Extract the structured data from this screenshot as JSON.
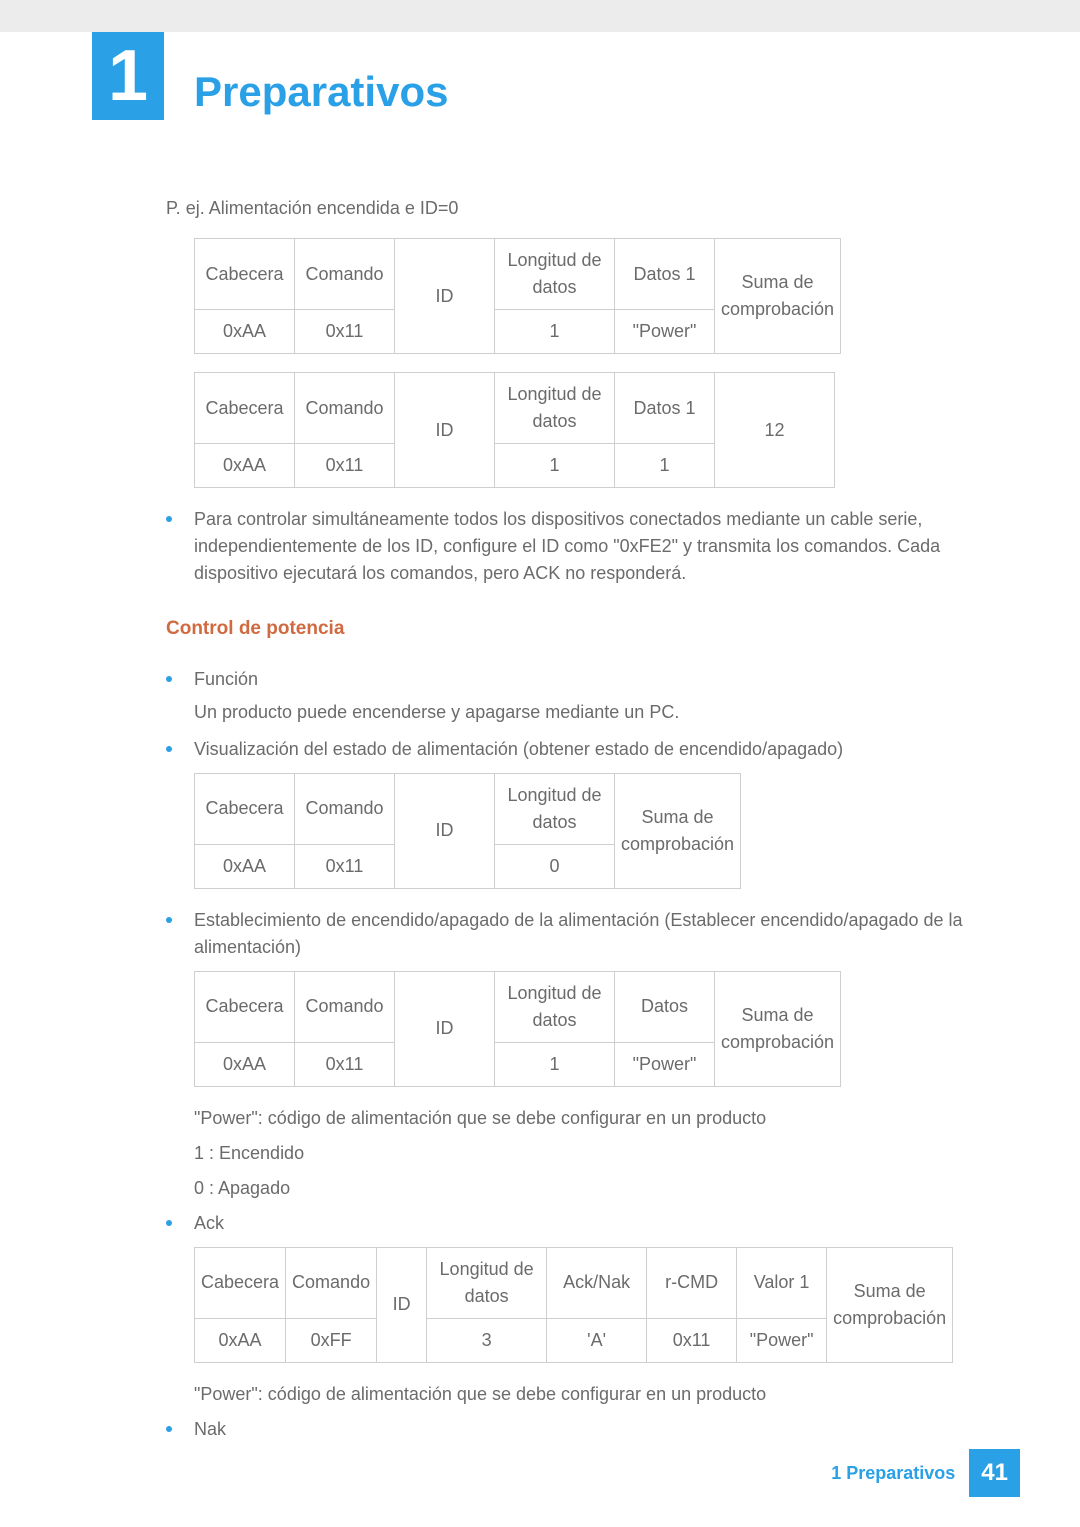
{
  "chapter": {
    "number": "1",
    "title": "Preparativos"
  },
  "intro_line": "P. ej. Alimentación encendida e ID=0",
  "table1": {
    "headers": [
      "Cabecera",
      "Comando",
      "ID",
      "Longitud de datos",
      "Datos 1"
    ],
    "merged_header": "Suma de comprobación",
    "row": [
      "0xAA",
      "0x11",
      "",
      "1",
      "\"Power\""
    ]
  },
  "table2": {
    "headers": [
      "Cabecera",
      "Comando",
      "ID",
      "Longitud de datos",
      "Datos 1"
    ],
    "merged_header": "12",
    "row": [
      "0xAA",
      "0x11",
      "",
      "1",
      "1"
    ]
  },
  "bullet_serial": "Para controlar simultáneamente todos los dispositivos conectados mediante un cable serie, independientemente de los ID, configure el ID como \"0xFE2\" y transmita los comandos. Cada dispositivo ejecutará los comandos, pero ACK no responderá.",
  "section_power": "Control de potencia",
  "bullet_funcion": {
    "title": "Función",
    "sub": "Un producto puede encenderse y apagarse mediante un PC."
  },
  "bullet_viz": "Visualización del estado de alimentación (obtener estado de encendido/apagado)",
  "table3": {
    "headers": [
      "Cabecera",
      "Comando",
      "ID",
      "Longitud de datos"
    ],
    "merged_header": "Suma de comprobación",
    "row": [
      "0xAA",
      "0x11",
      "",
      "0"
    ]
  },
  "bullet_estab": "Establecimiento de encendido/apagado de la alimentación (Establecer encendido/apagado de la alimentación)",
  "table4": {
    "headers": [
      "Cabecera",
      "Comando",
      "ID",
      "Longitud de datos",
      "Datos"
    ],
    "merged_header": "Suma de comprobación",
    "row": [
      "0xAA",
      "0x11",
      "",
      "1",
      "\"Power\""
    ]
  },
  "after_t4_1": "\"Power\": código de alimentación que se debe configurar en un producto",
  "after_t4_2": "1 : Encendido",
  "after_t4_3": "0 : Apagado",
  "bullet_ack": "Ack",
  "table5": {
    "headers": [
      "Cabecera",
      "Comando",
      "ID",
      "Longitud de datos",
      "Ack/Nak",
      "r-CMD",
      "Valor 1"
    ],
    "merged_header": "Suma de comprobación",
    "row": [
      "0xAA",
      "0xFF",
      "",
      "3",
      "'A'",
      "0x11",
      "\"Power\""
    ]
  },
  "after_t5": "\"Power\": código de alimentación que se debe configurar en un producto",
  "bullet_nak": "Nak",
  "footer": {
    "label": "1 Preparativos",
    "page": "41"
  },
  "colors": {
    "accent": "#2aa0e6",
    "section": "#d06a40",
    "text": "#6b6b6b",
    "border": "#cfcfcf",
    "topbar": "#ececec"
  }
}
